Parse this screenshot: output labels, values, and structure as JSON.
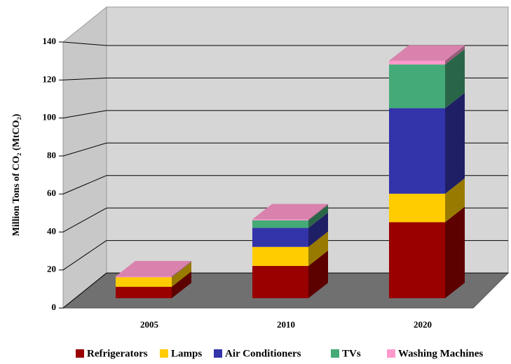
{
  "chart_data": {
    "type": "bar",
    "stacked": true,
    "three_d": true,
    "ylabel": "Million Tons of CO₂ (MtCO₂)",
    "categories": [
      "2005",
      "2010",
      "2020"
    ],
    "series": [
      {
        "name": "Refrigerators",
        "color": "#990000",
        "values": [
          6,
          17,
          40
        ]
      },
      {
        "name": "Lamps",
        "color": "#ffcc00",
        "values": [
          5,
          10,
          15
        ]
      },
      {
        "name": "Air Conditioners",
        "color": "#3333aa",
        "values": [
          0,
          10,
          45
        ]
      },
      {
        "name": "TVs",
        "color": "#44aa77",
        "values": [
          0,
          4,
          23
        ]
      },
      {
        "name": "Washing Machines",
        "color": "#ff99cc",
        "values": [
          0.5,
          0.5,
          2
        ]
      }
    ],
    "ylim": [
      0,
      140
    ],
    "yticks": [
      0,
      20,
      40,
      60,
      80,
      100,
      120,
      140
    ],
    "grid": true,
    "legend": "bottom"
  }
}
